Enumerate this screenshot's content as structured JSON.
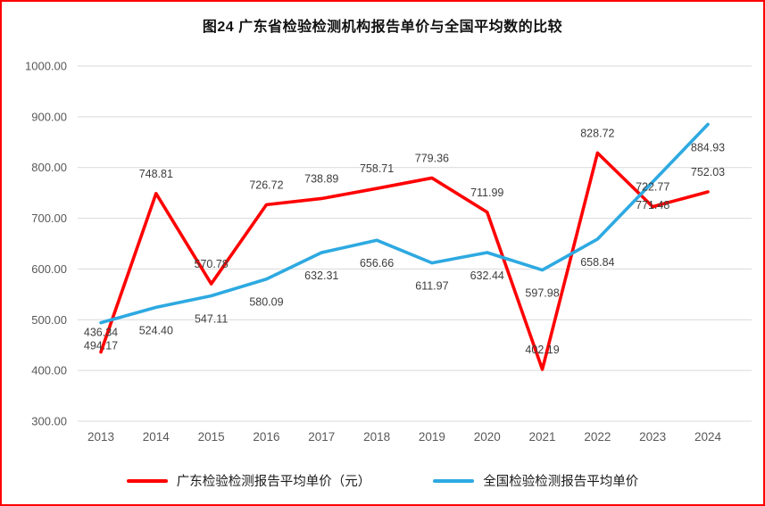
{
  "title": "图24  广东省检验检测机构报告单价与全国平均数的比较",
  "frame_border_color": "#ff0000",
  "chart_data": {
    "type": "line",
    "categories": [
      "2013",
      "2014",
      "2015",
      "2016",
      "2017",
      "2018",
      "2019",
      "2020",
      "2021",
      "2022",
      "2023",
      "2024"
    ],
    "series": [
      {
        "name": "广东检验检测报告平均单价（元）",
        "color": "#ff0000",
        "label_position": "above",
        "values": [
          436.34,
          748.81,
          570.78,
          726.72,
          738.89,
          758.71,
          779.36,
          711.99,
          402.19,
          828.72,
          722.77,
          752.03
        ]
      },
      {
        "name": "全国检验检测报告平均单价",
        "color": "#2da9e1",
        "label_position": "below",
        "values": [
          494.17,
          524.4,
          547.11,
          580.09,
          632.31,
          656.66,
          611.97,
          632.44,
          597.98,
          658.84,
          771.48,
          884.93
        ]
      }
    ],
    "ylim": [
      300,
      1000
    ],
    "yticks": [
      300,
      400,
      500,
      600,
      700,
      800,
      900,
      1000
    ],
    "ytick_labels": [
      "300.00",
      "400.00",
      "500.00",
      "600.00",
      "700.00",
      "800.00",
      "900.00",
      "1000.00"
    ],
    "grid": true,
    "gridline_color": "#d9d9d9",
    "axis_label_color": "#595959",
    "data_label_color": "#3d3d3d",
    "data_labels": true,
    "legend_position": "bottom"
  }
}
